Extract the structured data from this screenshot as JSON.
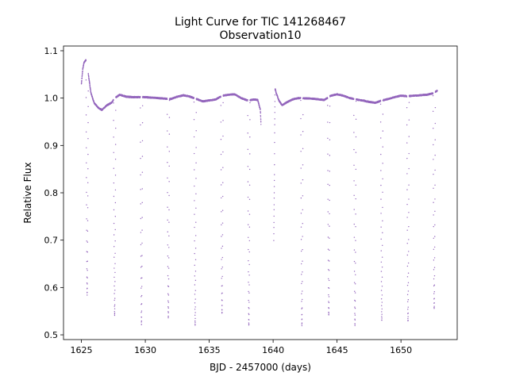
{
  "chart_data": {
    "type": "scatter",
    "title": "Light Curve for TIC 141268467",
    "subtitle": "Observation10",
    "xlabel": "BJD - 2457000 (days)",
    "ylabel": "Relative Flux",
    "xlim": [
      1623.6,
      1654.4
    ],
    "ylim": [
      0.49,
      1.11
    ],
    "xticks": [
      1625,
      1630,
      1635,
      1640,
      1645,
      1650
    ],
    "yticks": [
      0.5,
      0.6,
      0.7,
      0.8,
      0.9,
      1.0,
      1.1
    ],
    "xtick_labels": [
      "1625",
      "1630",
      "1635",
      "1640",
      "1645",
      "1650"
    ],
    "ytick_labels": [
      "0.5",
      "0.6",
      "0.7",
      "0.8",
      "0.9",
      "1.0",
      "1.1"
    ],
    "grid": false,
    "legend": "none",
    "color": "#9467bd",
    "segments": [
      {
        "x_start": 1625.0,
        "x_end": 1639.05,
        "points": [
          [
            1625.0,
            1.03
          ],
          [
            1625.1,
            1.06
          ],
          [
            1625.2,
            1.075
          ],
          [
            1625.35,
            1.08
          ],
          [
            1625.45,
            1.07
          ],
          [
            1625.55,
            1.05
          ],
          [
            1625.6,
            1.04
          ],
          [
            1625.75,
            1.01
          ],
          [
            1626.0,
            0.99
          ],
          [
            1626.3,
            0.98
          ],
          [
            1626.6,
            0.975
          ],
          [
            1627.0,
            0.985
          ],
          [
            1627.35,
            0.99
          ],
          [
            1627.6,
            1.0
          ],
          [
            1628.0,
            1.007
          ],
          [
            1628.5,
            1.003
          ],
          [
            1629.0,
            1.002
          ],
          [
            1630.0,
            1.002
          ],
          [
            1631.0,
            1.0
          ],
          [
            1632.0,
            0.998
          ],
          [
            1632.5,
            1.003
          ],
          [
            1633.0,
            1.006
          ],
          [
            1633.5,
            1.003
          ],
          [
            1634.0,
            0.998
          ],
          [
            1634.5,
            0.993
          ],
          [
            1635.0,
            0.995
          ],
          [
            1635.5,
            0.997
          ],
          [
            1636.0,
            1.005
          ],
          [
            1636.5,
            1.007
          ],
          [
            1637.0,
            1.008
          ],
          [
            1637.5,
            1.0
          ],
          [
            1638.0,
            0.995
          ],
          [
            1638.5,
            0.997
          ],
          [
            1638.8,
            0.996
          ],
          [
            1639.0,
            0.975
          ],
          [
            1639.05,
            0.945
          ]
        ]
      },
      {
        "x_start": 1640.05,
        "x_end": 1652.85,
        "points": [
          [
            1640.05,
            0.7
          ],
          [
            1640.1,
            0.84
          ],
          [
            1640.12,
            0.94
          ],
          [
            1640.15,
            1.02
          ],
          [
            1640.25,
            1.01
          ],
          [
            1640.45,
            0.995
          ],
          [
            1640.7,
            0.985
          ],
          [
            1641.0,
            0.99
          ],
          [
            1641.5,
            0.997
          ],
          [
            1642.0,
            1.0
          ],
          [
            1643.0,
            0.999
          ],
          [
            1644.0,
            0.996
          ],
          [
            1644.5,
            1.005
          ],
          [
            1645.0,
            1.008
          ],
          [
            1645.5,
            1.005
          ],
          [
            1646.0,
            1.0
          ],
          [
            1646.5,
            0.997
          ],
          [
            1647.0,
            0.995
          ],
          [
            1647.5,
            0.992
          ],
          [
            1648.0,
            0.99
          ],
          [
            1648.5,
            0.995
          ],
          [
            1649.0,
            0.998
          ],
          [
            1649.5,
            1.002
          ],
          [
            1650.0,
            1.005
          ],
          [
            1650.5,
            1.004
          ],
          [
            1651.0,
            1.005
          ],
          [
            1651.5,
            1.006
          ],
          [
            1652.0,
            1.007
          ],
          [
            1652.5,
            1.01
          ],
          [
            1652.8,
            1.015
          ]
        ]
      }
    ],
    "eclipses": [
      {
        "center": 1625.45,
        "depth_min": 0.585
      },
      {
        "center": 1627.6,
        "depth_min": 0.54
      },
      {
        "center": 1629.7,
        "depth_min": 0.52
      },
      {
        "center": 1631.8,
        "depth_min": 0.535
      },
      {
        "center": 1633.9,
        "depth_min": 0.52
      },
      {
        "center": 1636.0,
        "depth_min": 0.545
      },
      {
        "center": 1638.1,
        "depth_min": 0.52
      },
      {
        "center": 1642.25,
        "depth_min": 0.52
      },
      {
        "center": 1644.35,
        "depth_min": 0.54
      },
      {
        "center": 1646.4,
        "depth_min": 0.52
      },
      {
        "center": 1648.5,
        "depth_min": 0.53
      },
      {
        "center": 1650.55,
        "depth_min": 0.528
      },
      {
        "center": 1652.6,
        "depth_min": 0.555
      }
    ]
  }
}
